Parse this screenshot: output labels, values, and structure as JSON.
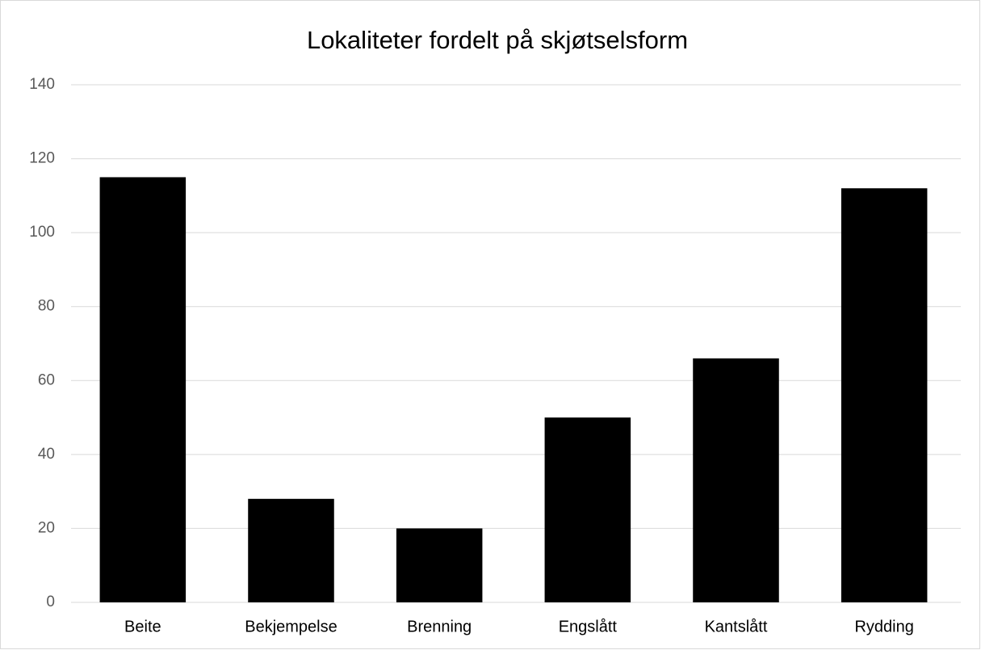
{
  "chart_data": {
    "type": "bar",
    "title": "Lokaliteter fordelt på skjøtselsform",
    "categories": [
      "Beite",
      "Bekjempelse",
      "Brenning",
      "Engslått",
      "Kantslått",
      "Rydding"
    ],
    "values": [
      115,
      28,
      20,
      50,
      66,
      112
    ],
    "color": "#000000",
    "ylim": [
      0,
      140
    ],
    "yticks": [
      0,
      20,
      40,
      60,
      80,
      100,
      120,
      140
    ],
    "grid": true
  }
}
